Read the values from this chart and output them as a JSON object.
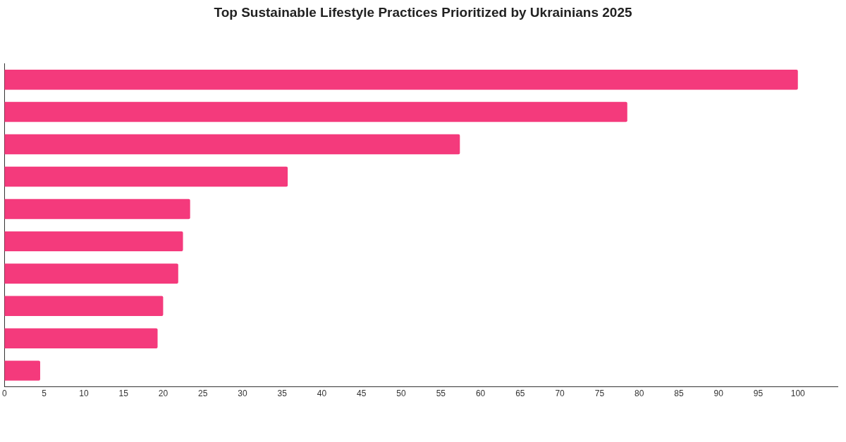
{
  "chart_data": {
    "type": "bar",
    "orientation": "horizontal",
    "title": "Top Sustainable Lifestyle Practices Prioritized by Ukrainians 2025",
    "categories": [
      null,
      null,
      null,
      null,
      null,
      null,
      null,
      null,
      null,
      null
    ],
    "values": [
      100,
      78.5,
      57.4,
      35.7,
      23.4,
      22.5,
      21.9,
      20,
      19.3,
      4.5
    ],
    "color": "#f43a7c",
    "xlim": [
      0,
      105
    ],
    "xticks": [
      0,
      5,
      10,
      15,
      20,
      25,
      30,
      35,
      40,
      45,
      50,
      55,
      60,
      65,
      70,
      75,
      80,
      85,
      90,
      95,
      100
    ],
    "grid": false,
    "legend": false
  }
}
